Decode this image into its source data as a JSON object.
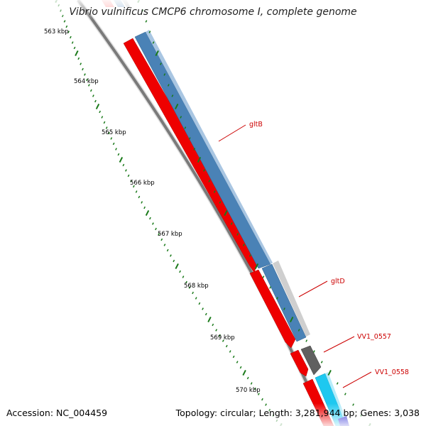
{
  "title": "Vibrio vulnificus CMCP6 chromosome I, complete genome",
  "accession_text": "Accession: NC_004459",
  "topology_text": "Topology: circular; Length: 3,281,944 bp; Genes: 3,038",
  "kbp_ticks": [
    "563 kbp",
    "564 kbp",
    "565 kbp",
    "566 kbp",
    "567 kbp",
    "568 kbp",
    "569 kbp",
    "570 kbp"
  ],
  "gene_labels": [
    "gltB",
    "gltD",
    "VV1_0557",
    "VV1_0558"
  ],
  "colors": {
    "forward_cds": "#ff0000",
    "cds_blue": "#4682b4",
    "cds_light_blue": "#1ec8f0",
    "backbone": "#808080",
    "ticks": "#1a7a1a",
    "gene_label": "#cc0000"
  }
}
